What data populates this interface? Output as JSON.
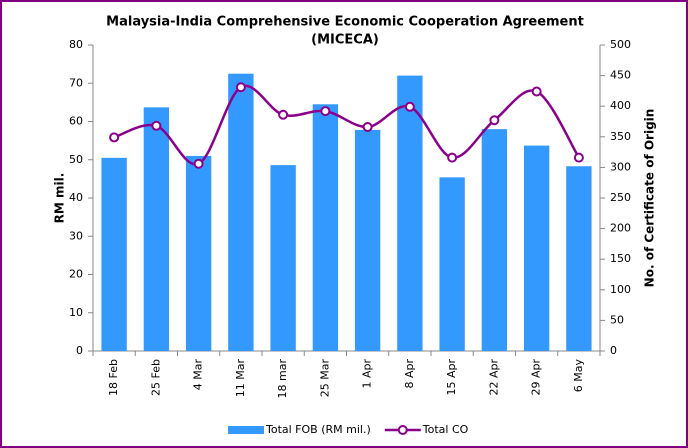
{
  "chart_data": {
    "type": "bar-line",
    "title": [
      "Malaysia-India Comprehensive Economic Cooperation Agreement",
      "(MICECA)"
    ],
    "y_label": "RM mil.",
    "y2_label": "No. of Certificate of Origin",
    "categories": [
      "18 Feb",
      "25 Feb",
      "4 Mar",
      "11 Mar",
      "18 mar",
      "25 Mar",
      "1 Apr",
      "8 Apr",
      "15 Apr",
      "22 Apr",
      "29 Apr",
      "6 May"
    ],
    "series": [
      {
        "name": "Total FOB (RM mil.)",
        "type": "bar",
        "color": "#3399ff",
        "values": [
          50.5,
          63.7,
          51,
          72.5,
          48.6,
          64.5,
          57.8,
          72,
          45.4,
          58,
          53.7,
          48.3
        ]
      },
      {
        "name": "Total CO",
        "type": "line",
        "axis": "y2",
        "color": "#8b008b",
        "values": [
          349,
          368,
          306,
          431,
          386,
          392,
          366,
          399,
          316,
          377,
          424,
          316
        ]
      }
    ],
    "ylim": [
      0,
      80
    ],
    "yticks": [
      0,
      10,
      20,
      30,
      40,
      50,
      60,
      70,
      80
    ],
    "y2lim": [
      0,
      500
    ],
    "y2ticks": [
      0,
      50,
      100,
      150,
      200,
      250,
      300,
      350,
      400,
      450,
      500
    ],
    "legend": "bottom",
    "grid": false
  }
}
